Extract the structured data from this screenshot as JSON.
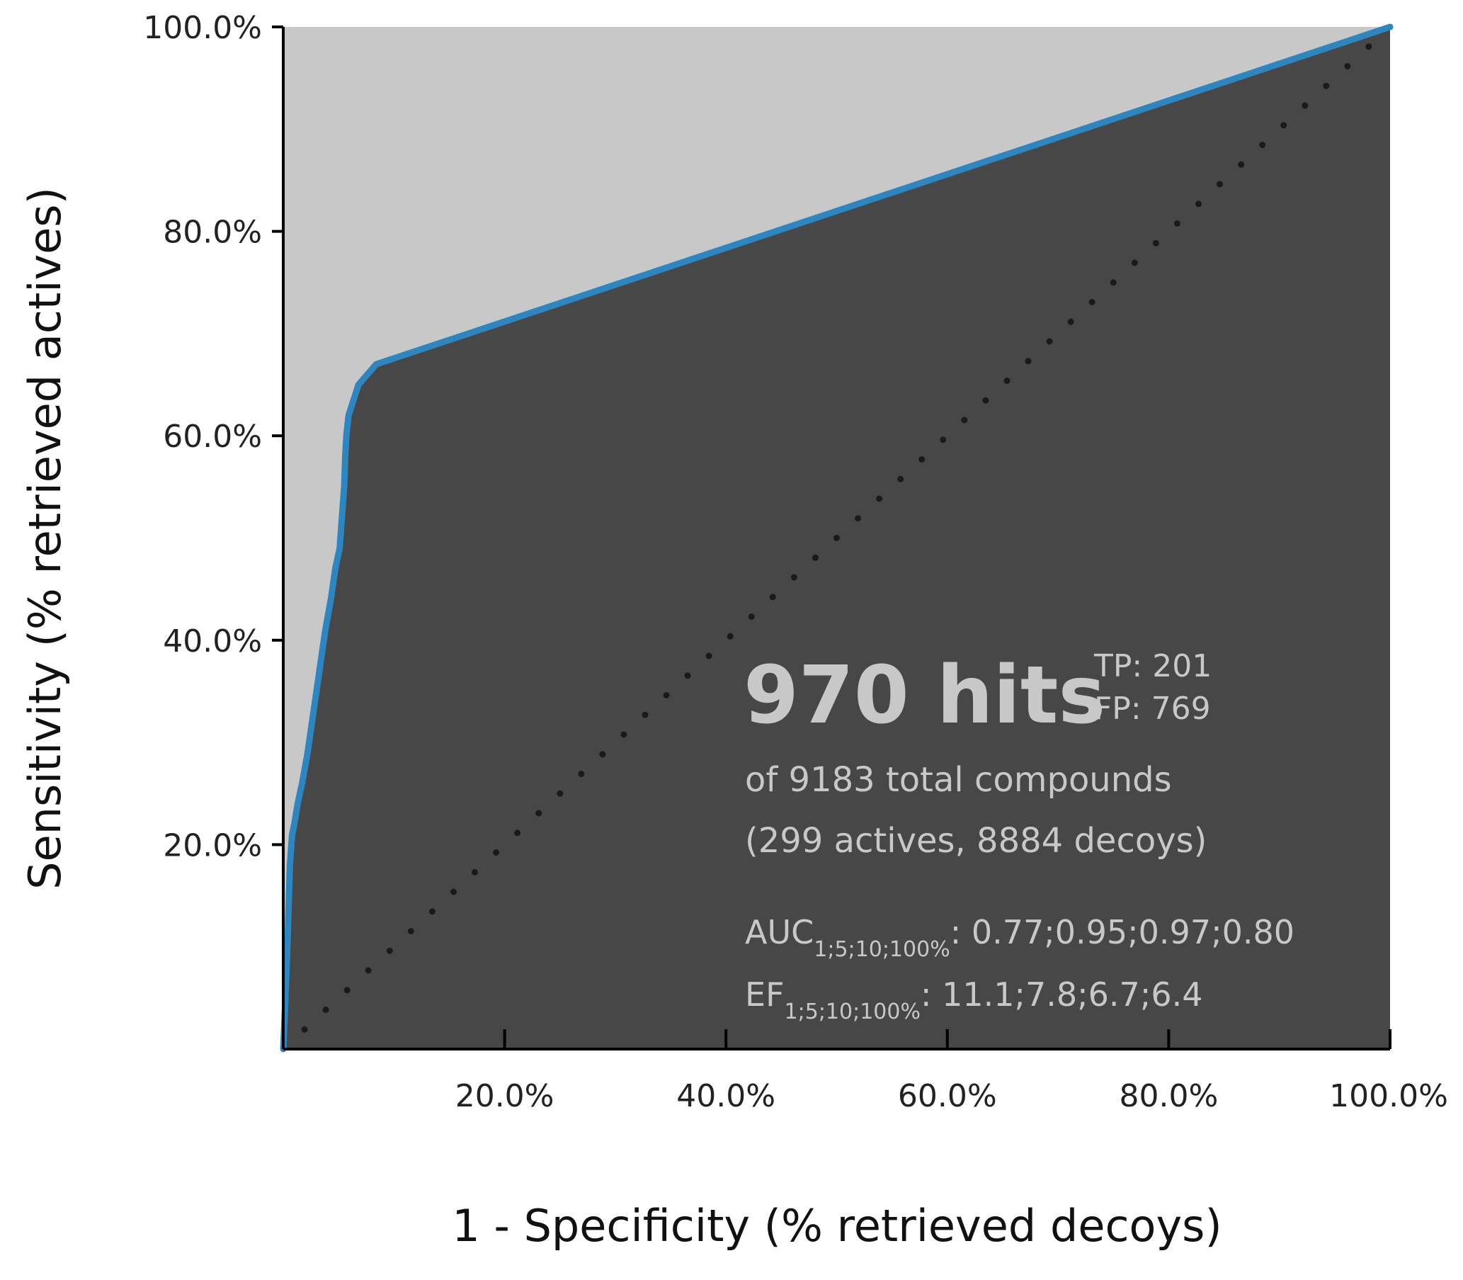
{
  "chart_data": {
    "type": "area",
    "xlabel": "1 - Specificity (% retrieved decoys)",
    "ylabel": "Sensitivity (% retrieved actives)",
    "xlim": [
      0,
      100
    ],
    "ylim": [
      0,
      100
    ],
    "x_ticks": [
      "20.0%",
      "40.0%",
      "60.0%",
      "80.0%",
      "100.0%"
    ],
    "y_ticks": [
      "20.0%",
      "40.0%",
      "60.0%",
      "80.0%",
      "100.0%"
    ],
    "grid": false,
    "colors": {
      "curve": "#2e86c1",
      "area_under": "#474747",
      "area_above": "#c8c8c8",
      "diagonal": "#1a1a1a",
      "annotation_text": "#c8c8c8"
    },
    "series": [
      {
        "x": [
          0,
          0.2,
          0.4,
          0.6,
          0.8,
          1.0,
          1.3,
          1.7,
          2.2,
          2.6,
          3.0,
          3.4,
          3.8,
          4.3,
          4.7,
          5.1,
          5.3,
          5.5,
          5.6,
          5.7,
          5.9,
          6.2,
          6.8,
          7.6,
          8.4,
          100
        ],
        "y": [
          0,
          5,
          11,
          18,
          21,
          22,
          24,
          26,
          29,
          32,
          35,
          38,
          41,
          44,
          47,
          49,
          52,
          55,
          58,
          60,
          62,
          63,
          65,
          66,
          67,
          100
        ]
      }
    ],
    "diagonal": {
      "x": [
        0,
        100
      ],
      "y": [
        0,
        100
      ]
    },
    "annotation": {
      "hits": "970 hits",
      "tp": "TP: 201",
      "fp": "FP: 769",
      "total": "of 9183 total compounds",
      "breakdown": "(299 actives, 8884 decoys)",
      "auc_label": "AUC",
      "auc_sub": "1;5;10;100%",
      "auc_values": ": 0.77;0.95;0.97;0.80",
      "ef_label": "EF",
      "ef_sub": "1;5;10;100%",
      "ef_values": ": 11.1;7.8;6.7;6.4"
    }
  }
}
